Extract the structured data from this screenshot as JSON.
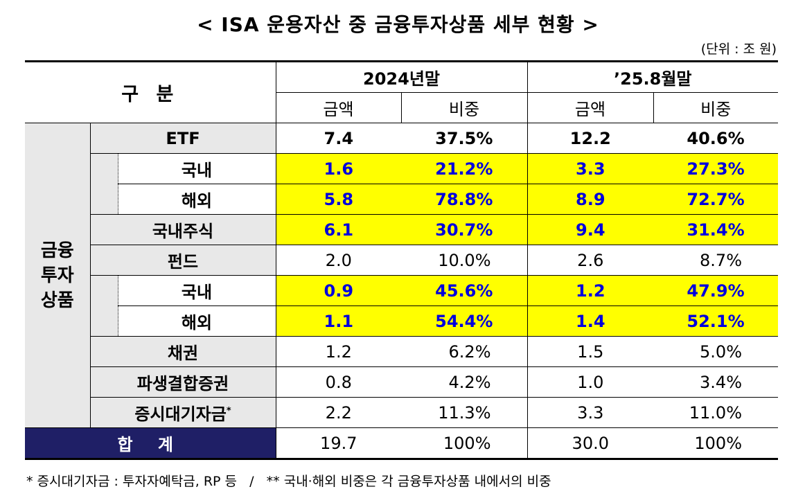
{
  "title": "< ISA 운용자산 중 금융투자상품 세부 현황 >",
  "unit": "(단위 : 조 원)",
  "header": {
    "category": "구 분",
    "period1": "2024년말",
    "period2": "’25.8월말",
    "amount": "금액",
    "share": "비중"
  },
  "group_label": "금융\n투자\n상품",
  "rows": [
    {
      "label": "ETF",
      "a1": "7.4",
      "s1": "37.5%",
      "a2": "12.2",
      "s2": "40.6%"
    },
    {
      "label": "국내",
      "a1": "1.6",
      "s1": "21.2%",
      "a2": "3.3",
      "s2": "27.3%"
    },
    {
      "label": "해외",
      "a1": "5.8",
      "s1": "78.8%",
      "a2": "8.9",
      "s2": "72.7%"
    },
    {
      "label": "국내주식",
      "a1": "6.1",
      "s1": "30.7%",
      "a2": "9.4",
      "s2": "31.4%"
    },
    {
      "label": "펀드",
      "a1": "2.0",
      "s1": "10.0%",
      "a2": "2.6",
      "s2": "8.7%"
    },
    {
      "label": "국내",
      "a1": "0.9",
      "s1": "45.6%",
      "a2": "1.2",
      "s2": "47.9%"
    },
    {
      "label": "해외",
      "a1": "1.1",
      "s1": "54.4%",
      "a2": "1.4",
      "s2": "52.1%"
    },
    {
      "label": "채권",
      "a1": "1.2",
      "s1": "6.2%",
      "a2": "1.5",
      "s2": "5.0%"
    },
    {
      "label": "파생결합증권",
      "a1": "0.8",
      "s1": "4.2%",
      "a2": "1.0",
      "s2": "3.4%"
    },
    {
      "label": "증시대기자금",
      "sup": "*",
      "a1": "2.2",
      "s1": "11.3%",
      "a2": "3.3",
      "s2": "11.0%"
    }
  ],
  "total": {
    "label": "합 계",
    "a1": "19.7",
    "s1": "100%",
    "a2": "30.0",
    "s2": "100%"
  },
  "footnote": "* 증시대기자금 : 투자자예탁금, RP 등   /   ** 국내·해외 비중은 각 금융투자상품 내에서의 비중",
  "colors": {
    "highlight": "#ffff00",
    "highlight_text": "#0000dd",
    "total_bg": "#1f1f66",
    "label_bg": "#e8e8e8"
  }
}
